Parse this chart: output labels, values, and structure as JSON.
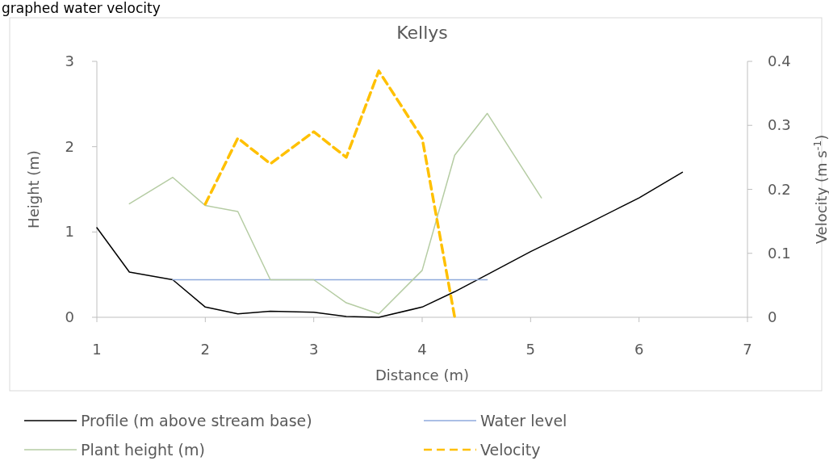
{
  "chart_data": {
    "type": "line",
    "title": "Kellys",
    "xlabel": "Distance (m)",
    "ylabel": "Height (m)",
    "y2label": "Velocity (m s$^{-1}$)",
    "annotations": [
      "graphed water velocity"
    ],
    "xlim": [
      1,
      7
    ],
    "xticks": [
      1,
      2,
      3,
      4,
      5,
      6,
      7
    ],
    "ylim": [
      0,
      3
    ],
    "yticks": [
      0,
      1,
      2,
      3
    ],
    "y2lim": [
      0,
      0.4
    ],
    "y2ticks": [
      0,
      0.1,
      0.2,
      0.3,
      0.4
    ],
    "grid": false,
    "legend": "bottom",
    "marker": "none",
    "series": [
      {
        "name": "Profile (m above stream base)",
        "color": "#000000",
        "x": [
          1,
          1.3,
          1.7,
          2,
          2.3,
          2.6,
          3,
          3.3,
          3.6,
          4,
          4.3,
          4.6,
          5,
          5.5,
          6,
          6.4
        ],
        "values": [
          1.05,
          0.53,
          0.44,
          0.12,
          0.04,
          0.07,
          0.06,
          0.01,
          0,
          0.12,
          0.3,
          0.5,
          0.77,
          1.08,
          1.4,
          1.7
        ]
      },
      {
        "name": "Water level",
        "color": "#8faadc",
        "x": [
          1.7,
          4.6
        ],
        "values": [
          0.44,
          0.44
        ]
      },
      {
        "name": "Plant height (m)",
        "color": "#b5cca3",
        "x": [
          1.3,
          1.7,
          2,
          2.3,
          2.6,
          3,
          3.3,
          3.6,
          4,
          4.3,
          4.6,
          5.1
        ],
        "values": [
          1.33,
          1.64,
          1.31,
          1.24,
          0.44,
          0.44,
          0.17,
          0.04,
          0.55,
          1.9,
          2.39,
          1.4
        ]
      },
      {
        "name": "Velocity",
        "color": "#ffc000",
        "axis": "y2",
        "line_style": "dashed",
        "x": [
          2,
          2.3,
          2.6,
          3,
          3.3,
          3.6,
          4,
          4.3
        ],
        "values": [
          0.177,
          0.28,
          0.24,
          0.29,
          0.25,
          0.385,
          0.28,
          0
        ]
      }
    ]
  }
}
